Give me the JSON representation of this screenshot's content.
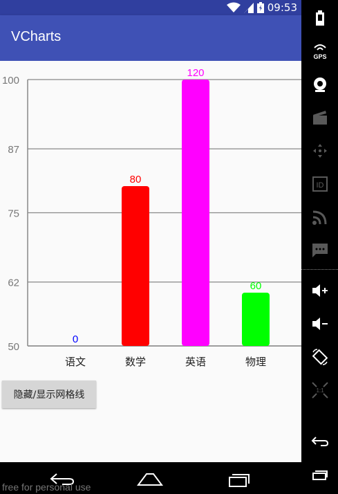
{
  "status_bar": {
    "time": "09:53"
  },
  "app_bar": {
    "title": "VCharts"
  },
  "chart_data": {
    "type": "bar",
    "categories": [
      "语文",
      "数学",
      "英语",
      "物理"
    ],
    "values": [
      0,
      80,
      120,
      60
    ],
    "value_labels": [
      "0",
      "80",
      "120",
      "60"
    ],
    "colors": [
      "#0000ff",
      "#ff0000",
      "#ff00ff",
      "#00ff00"
    ],
    "y_ticks": [
      100,
      87,
      75,
      62,
      50
    ],
    "ylim": [
      50,
      100
    ],
    "grid": true,
    "title": "",
    "xlabel": "",
    "ylabel": ""
  },
  "button": {
    "label": "隐藏/显示网格线"
  },
  "watermark": "free for personal use",
  "emulator_toolbar": [
    "power-icon",
    "gps-icon",
    "camera-icon",
    "video-icon",
    "dpad-icon",
    "id-icon",
    "cast-icon",
    "sms-icon",
    "volume-up-icon",
    "volume-down-icon",
    "rotate-icon",
    "scale-icon",
    "back-icon",
    "recents-icon"
  ]
}
